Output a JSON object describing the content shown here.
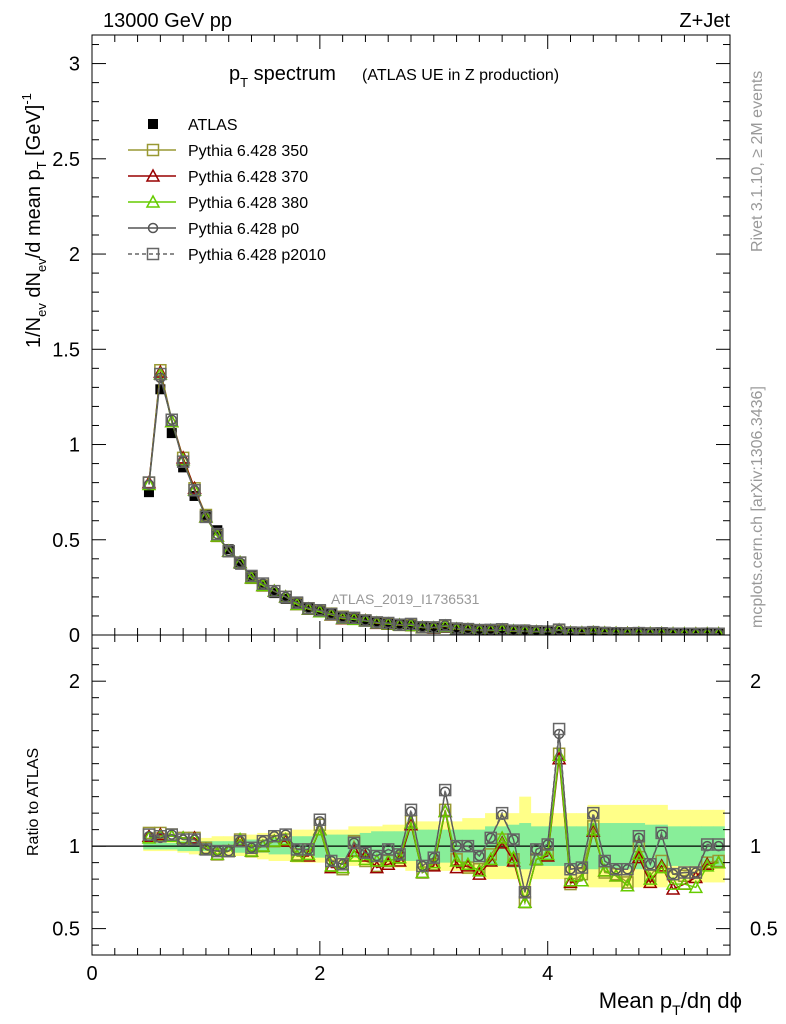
{
  "header": {
    "left": "13000 GeV pp",
    "right": "Z+Jet"
  },
  "side_labels": {
    "top": "Rivet 3.1.10, ≥ 2M events",
    "bottom": "mcplots.cern.ch [arXiv:1306.3436]"
  },
  "chart_data": [
    {
      "type": "line",
      "title": "p_T spectrum",
      "title_main": "p",
      "title_sub": "T",
      "title_rest": " spectrum",
      "subtitle": "(ATLAS UE in Z production)",
      "ylabel": "1/N_ev dN_ev/d mean p_T [GeV]^-1",
      "analysis_tag": "ATLAS_2019_I1736531",
      "xlim": [
        0,
        5.6
      ],
      "ylim": [
        0,
        3.15
      ],
      "yticks": [
        0,
        0.5,
        1,
        1.5,
        2,
        2.5,
        3
      ],
      "ytick_labels": [
        "0",
        "0.5",
        "1",
        "1.5",
        "2",
        "2.5",
        "3"
      ],
      "legend_position": "top-left",
      "x": [
        0.5,
        0.6,
        0.7,
        0.8,
        0.9,
        1.0,
        1.1,
        1.2,
        1.3,
        1.4,
        1.5,
        1.6,
        1.7,
        1.8,
        1.9,
        2.0,
        2.1,
        2.2,
        2.3,
        2.4,
        2.5,
        2.6,
        2.7,
        2.8,
        2.9,
        3.0,
        3.1,
        3.2,
        3.3,
        3.4,
        3.5,
        3.6,
        3.7,
        3.8,
        3.9,
        4.0,
        4.1,
        4.2,
        4.3,
        4.4,
        4.5,
        4.6,
        4.7,
        4.8,
        4.9,
        5.0,
        5.1,
        5.2,
        5.3,
        5.4,
        5.5
      ],
      "series": [
        {
          "name": "ATLAS",
          "color": "#000000",
          "marker": "filled-square",
          "values": [
            0.75,
            1.29,
            1.06,
            0.88,
            0.73,
            0.63,
            0.55,
            0.45,
            0.37,
            0.31,
            0.26,
            0.22,
            0.19,
            0.17,
            0.145,
            0.125,
            0.11,
            0.098,
            0.088,
            0.079,
            0.07,
            0.064,
            0.057,
            0.051,
            0.046,
            0.042,
            0.038,
            0.034,
            0.031,
            0.028,
            0.026,
            0.024,
            0.022,
            0.029,
            0.019,
            0.018,
            0.016,
            0.015,
            0.014,
            0.013,
            0.012,
            0.011,
            0.01,
            0.0096,
            0.009,
            0.0085,
            0.008,
            0.0076,
            0.0072,
            0.0068,
            0.0065
          ]
        },
        {
          "name": "Pythia 6.428 350",
          "color": "#999933",
          "marker": "open-square",
          "values": [
            0.8,
            1.39,
            1.13,
            0.93,
            0.77,
            0.63,
            0.52,
            0.44,
            0.38,
            0.3,
            0.26,
            0.23,
            0.2,
            0.165,
            0.14,
            0.125,
            0.112,
            0.096,
            0.086,
            0.076,
            0.065,
            0.06,
            0.053,
            0.051,
            0.04,
            0.038,
            0.047,
            0.032,
            0.029,
            0.024,
            0.024,
            0.025,
            0.021,
            0.02,
            0.017,
            0.017,
            0.025,
            0.012,
            0.011,
            0.013,
            0.01,
            0.0092,
            0.0082,
            0.009,
            0.0075,
            0.0078,
            0.0066,
            0.0062,
            0.0061,
            0.006,
            0.006
          ]
        },
        {
          "name": "Pythia 6.428 370",
          "color": "#990000",
          "marker": "open-triangle",
          "values": [
            0.8,
            1.38,
            1.12,
            0.93,
            0.77,
            0.62,
            0.52,
            0.44,
            0.38,
            0.3,
            0.26,
            0.23,
            0.2,
            0.16,
            0.135,
            0.122,
            0.105,
            0.085,
            0.085,
            0.075,
            0.061,
            0.057,
            0.051,
            0.051,
            0.039,
            0.037,
            0.045,
            0.03,
            0.027,
            0.023,
            0.023,
            0.025,
            0.02,
            0.019,
            0.017,
            0.017,
            0.025,
            0.012,
            0.0105,
            0.013,
            0.01,
            0.009,
            0.0079,
            0.0085,
            0.007,
            0.0075,
            0.006,
            0.0057,
            0.0059,
            0.006,
            0.006
          ]
        },
        {
          "name": "Pythia 6.428 380",
          "color": "#66cc00",
          "marker": "open-triangle",
          "values": [
            0.79,
            1.37,
            1.12,
            0.92,
            0.76,
            0.62,
            0.52,
            0.44,
            0.38,
            0.3,
            0.26,
            0.23,
            0.2,
            0.16,
            0.136,
            0.122,
            0.106,
            0.087,
            0.082,
            0.074,
            0.063,
            0.058,
            0.052,
            0.051,
            0.039,
            0.038,
            0.046,
            0.031,
            0.028,
            0.023,
            0.024,
            0.025,
            0.021,
            0.019,
            0.017,
            0.017,
            0.025,
            0.012,
            0.011,
            0.013,
            0.01,
            0.009,
            0.0077,
            0.0087,
            0.0073,
            0.0075,
            0.0063,
            0.0059,
            0.0054,
            0.0059,
            0.006
          ]
        },
        {
          "name": "Pythia 6.428 p0",
          "color": "#555555",
          "marker": "open-circle",
          "values": [
            0.79,
            1.35,
            1.13,
            0.91,
            0.76,
            0.62,
            0.53,
            0.44,
            0.38,
            0.31,
            0.27,
            0.23,
            0.2,
            0.17,
            0.14,
            0.13,
            0.11,
            0.092,
            0.09,
            0.076,
            0.066,
            0.063,
            0.054,
            0.058,
            0.041,
            0.04,
            0.051,
            0.034,
            0.031,
            0.026,
            0.027,
            0.03,
            0.023,
            0.021,
            0.019,
            0.018,
            0.028,
            0.013,
            0.012,
            0.015,
            0.011,
            0.0094,
            0.0087,
            0.01,
            0.008,
            0.0091,
            0.0066,
            0.0064,
            0.0061,
            0.0068,
            0.0065
          ]
        },
        {
          "name": "Pythia 6.428 p2010",
          "color": "#666666",
          "marker": "open-square",
          "dashed": true,
          "values": [
            0.8,
            1.37,
            1.13,
            0.91,
            0.76,
            0.62,
            0.53,
            0.44,
            0.38,
            0.31,
            0.27,
            0.23,
            0.2,
            0.17,
            0.14,
            0.13,
            0.11,
            0.092,
            0.09,
            0.076,
            0.066,
            0.063,
            0.054,
            0.058,
            0.041,
            0.04,
            0.051,
            0.034,
            0.031,
            0.026,
            0.027,
            0.03,
            0.023,
            0.021,
            0.019,
            0.018,
            0.028,
            0.013,
            0.012,
            0.015,
            0.011,
            0.0094,
            0.0087,
            0.01,
            0.008,
            0.0091,
            0.0066,
            0.0064,
            0.0061,
            0.0068,
            0.0065
          ]
        }
      ]
    },
    {
      "type": "line",
      "ylabel": "Ratio to ATLAS",
      "xlabel": "Mean p_T/dη dϕ",
      "xlabel_pre": "Mean p",
      "xlabel_sub": "T",
      "xlabel_post": "/dη dϕ",
      "xlim": [
        0,
        5.6
      ],
      "ylim": [
        0.34,
        2.28
      ],
      "xticks": [
        0,
        2,
        4
      ],
      "xtick_labels": [
        "0",
        "2",
        "4"
      ],
      "yticks": [
        0.5,
        1,
        2
      ],
      "ytick_labels": [
        "0.5",
        "1",
        "2"
      ],
      "reference_line": 1,
      "band_stat": [
        0.02,
        0.02,
        0.02,
        0.03,
        0.03,
        0.03,
        0.03,
        0.03,
        0.04,
        0.04,
        0.04,
        0.05,
        0.05,
        0.06,
        0.06,
        0.07,
        0.07,
        0.07,
        0.07,
        0.08,
        0.09,
        0.09,
        0.09,
        0.09,
        0.1,
        0.1,
        0.1,
        0.1,
        0.1,
        0.1,
        0.12,
        0.12,
        0.13,
        0.14,
        0.12,
        0.12,
        0.12,
        0.12,
        0.12,
        0.14,
        0.14,
        0.14,
        0.14,
        0.14,
        0.13,
        0.13,
        0.12,
        0.12,
        0.12,
        0.12,
        0.12
      ],
      "band_total": [
        0.03,
        0.03,
        0.03,
        0.04,
        0.05,
        0.05,
        0.06,
        0.06,
        0.06,
        0.07,
        0.08,
        0.09,
        0.09,
        0.1,
        0.1,
        0.1,
        0.1,
        0.1,
        0.12,
        0.12,
        0.12,
        0.13,
        0.13,
        0.15,
        0.15,
        0.15,
        0.15,
        0.15,
        0.17,
        0.17,
        0.2,
        0.2,
        0.2,
        0.3,
        0.2,
        0.2,
        0.2,
        0.2,
        0.2,
        0.25,
        0.25,
        0.25,
        0.25,
        0.25,
        0.25,
        0.25,
        0.22,
        0.22,
        0.22,
        0.22,
        0.22
      ],
      "series": [
        {
          "name": "Pythia 6.428 350",
          "color": "#999933",
          "marker": "open-square",
          "values": [
            1.08,
            1.08,
            1.07,
            1.05,
            1.05,
            0.99,
            0.95,
            0.97,
            1.04,
            0.97,
            1.0,
            1.03,
            1.04,
            0.95,
            0.98,
            1.13,
            0.88,
            0.86,
            1.03,
            0.91,
            0.88,
            0.91,
            0.93,
            1.15,
            0.84,
            0.89,
            1.22,
            0.92,
            0.87,
            0.86,
            0.95,
            1.04,
            0.92,
            0.66,
            0.92,
            0.95,
            1.56,
            0.77,
            0.83,
            1.12,
            0.84,
            0.83,
            0.78,
            1.0,
            0.82,
            0.91,
            0.83,
            0.82,
            0.84,
            0.9,
            0.91
          ]
        },
        {
          "name": "Pythia 6.428 370",
          "color": "#990000",
          "marker": "open-triangle",
          "values": [
            1.06,
            1.07,
            1.06,
            1.05,
            1.05,
            0.98,
            0.95,
            0.97,
            1.03,
            0.97,
            1.0,
            1.03,
            1.03,
            0.94,
            0.94,
            1.1,
            0.87,
            0.87,
            0.97,
            0.94,
            0.87,
            0.89,
            0.91,
            1.13,
            0.84,
            0.88,
            1.21,
            0.87,
            0.88,
            0.83,
            0.91,
            1.02,
            0.91,
            0.66,
            0.92,
            0.94,
            1.53,
            0.78,
            0.79,
            1.09,
            0.85,
            0.82,
            0.76,
            0.93,
            0.78,
            0.88,
            0.74,
            0.77,
            0.81,
            0.89,
            0.9
          ]
        },
        {
          "name": "Pythia 6.428 380",
          "color": "#66cc00",
          "marker": "open-triangle",
          "values": [
            1.05,
            1.06,
            1.06,
            1.05,
            1.04,
            0.98,
            0.95,
            0.97,
            1.04,
            0.97,
            1.0,
            1.03,
            1.04,
            0.94,
            0.95,
            1.1,
            0.88,
            0.87,
            0.94,
            0.92,
            0.91,
            0.91,
            0.93,
            1.14,
            0.84,
            0.9,
            1.21,
            0.91,
            0.89,
            0.85,
            0.92,
            1.05,
            0.93,
            0.66,
            0.92,
            0.95,
            1.55,
            0.79,
            0.79,
            1.1,
            0.85,
            0.82,
            0.76,
            0.95,
            0.8,
            0.87,
            0.77,
            0.77,
            0.75,
            0.88,
            0.9
          ]
        },
        {
          "name": "Pythia 6.428 p0",
          "color": "#555555",
          "marker": "open-circle",
          "values": [
            1.06,
            1.05,
            1.07,
            1.04,
            1.04,
            0.98,
            0.97,
            0.97,
            1.03,
            0.99,
            1.03,
            1.06,
            1.07,
            0.98,
            0.98,
            1.15,
            0.91,
            0.89,
            1.02,
            0.96,
            0.94,
            0.98,
            0.95,
            1.21,
            0.88,
            0.93,
            1.33,
            1.0,
            1.0,
            0.94,
            1.05,
            1.19,
            1.04,
            0.72,
            0.98,
            1.01,
            1.68,
            0.86,
            0.87,
            1.19,
            0.91,
            0.86,
            0.86,
            1.05,
            0.89,
            1.07,
            0.83,
            0.84,
            0.84,
            1.0,
            1.0
          ]
        },
        {
          "name": "Pythia 6.428 p2010",
          "color": "#666666",
          "marker": "open-square",
          "dashed": true,
          "values": [
            1.07,
            1.06,
            1.07,
            1.04,
            1.04,
            0.98,
            0.97,
            0.97,
            1.03,
            0.99,
            1.03,
            1.06,
            1.07,
            0.98,
            0.98,
            1.16,
            0.91,
            0.89,
            1.02,
            0.96,
            0.94,
            0.98,
            0.95,
            1.22,
            0.88,
            0.93,
            1.34,
            1.0,
            1.0,
            0.94,
            1.05,
            1.2,
            1.04,
            0.72,
            0.98,
            1.01,
            1.71,
            0.86,
            0.87,
            1.2,
            0.91,
            0.86,
            0.86,
            1.06,
            0.89,
            1.08,
            0.83,
            0.84,
            0.84,
            1.01,
            1.01
          ]
        }
      ]
    }
  ]
}
